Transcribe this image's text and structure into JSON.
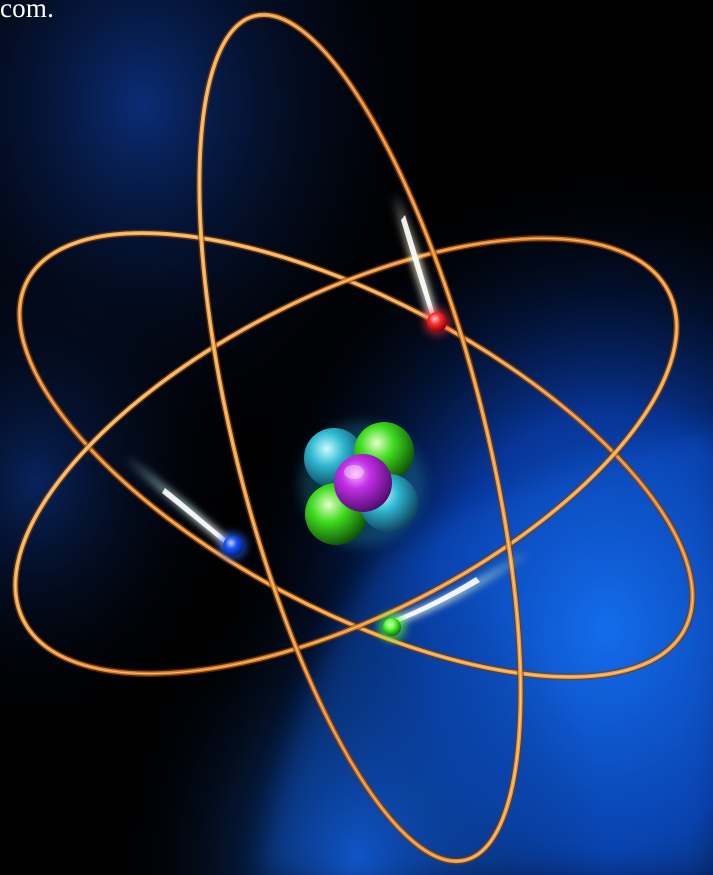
{
  "caption": {
    "text": "com."
  },
  "illustration": {
    "subject": "atom-model",
    "colors": {
      "background": "#000000",
      "glow_blue": "#0b5fe0",
      "orbit": "#e08a2a",
      "orbit_highlight": "#ffc36a",
      "electron_red": "#ff2a2a",
      "electron_blue": "#1a55ff",
      "electron_green": "#55ff33",
      "nucleus_purple": "#c230e8",
      "nucleus_cyan": "#2fd0e0",
      "nucleus_green": "#3fdc1f"
    }
  }
}
